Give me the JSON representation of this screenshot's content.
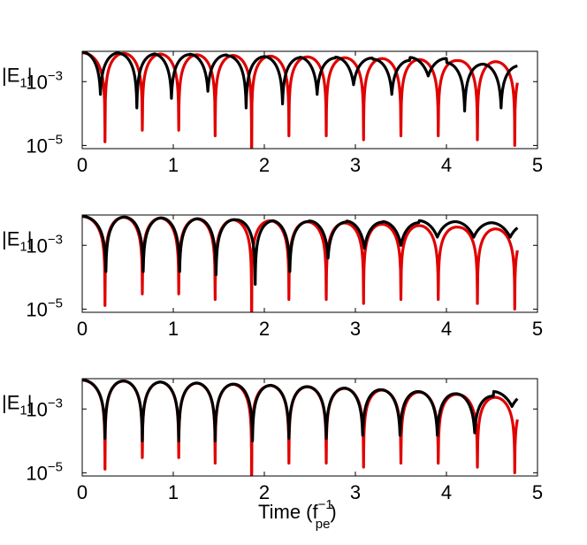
{
  "chart_data": [
    {
      "type": "line",
      "ylabel": "|E1|",
      "xlim": [
        0,
        5
      ],
      "x_ticks": [
        "0",
        "1",
        "2",
        "3",
        "4",
        "5"
      ],
      "y_scale": "log",
      "y_tick_labels": [
        {
          "base": "10",
          "exp": "−3"
        },
        {
          "base": "10",
          "exp": "−5"
        }
      ],
      "series": [
        {
          "color": "#e00000",
          "minima_x": [
            0.25,
            0.66,
            1.06,
            1.46,
            1.86,
            2.27,
            2.68,
            3.09,
            3.5,
            3.91,
            4.34,
            4.75
          ],
          "minima_depth": [
            1.3e-05,
            3e-05,
            3e-05,
            2e-05,
            1e-06,
            2e-05,
            2e-05,
            1.5e-05,
            2e-05,
            2e-05,
            1.5e-05,
            1e-05
          ],
          "peak_start": 0.008,
          "peak_end": 0.004,
          "end_x": 4.78
        },
        {
          "color": "#000000",
          "minima_x": [
            0.2,
            0.6,
            0.98,
            1.38,
            1.8,
            2.2,
            2.58,
            2.98,
            3.4,
            3.8,
            4.2,
            4.6
          ],
          "minima_depth": [
            0.0004,
            0.00015,
            0.0003,
            0.0005,
            0.00015,
            0.0002,
            0.0004,
            0.0008,
            0.0004,
            0.0015,
            0.00012,
            0.00015
          ],
          "peak_start": 0.008,
          "peak_end": 0.003,
          "end_x": 4.78
        }
      ]
    },
    {
      "type": "line",
      "ylabel": "|E1|",
      "xlim": [
        0,
        5
      ],
      "x_ticks": [
        "0",
        "1",
        "2",
        "3",
        "4",
        "5"
      ],
      "y_scale": "log",
      "y_tick_labels": [
        {
          "base": "10",
          "exp": "−3"
        },
        {
          "base": "10",
          "exp": "−5"
        }
      ],
      "series": [
        {
          "color": "#e00000",
          "minima_x": [
            0.25,
            0.66,
            1.06,
            1.46,
            1.86,
            2.27,
            2.68,
            3.09,
            3.5,
            3.91,
            4.34,
            4.75
          ],
          "minima_depth": [
            1.3e-05,
            3e-05,
            3e-05,
            2e-05,
            1e-06,
            2e-05,
            2e-05,
            1.5e-05,
            2e-05,
            2e-05,
            1.5e-05,
            1e-05
          ],
          "peak_start": 0.008,
          "peak_end": 0.003,
          "end_x": 4.78
        },
        {
          "color": "#000000",
          "minima_x": [
            0.26,
            0.67,
            1.07,
            1.47,
            1.9,
            2.28,
            2.7,
            3.1,
            3.5,
            3.9,
            4.3,
            4.7
          ],
          "minima_depth": [
            0.00015,
            0.00015,
            0.00015,
            0.00012,
            6e-05,
            0.00015,
            0.0004,
            0.0008,
            0.001,
            0.0018,
            0.0018,
            0.0018
          ],
          "peak_start": 0.008,
          "peak_end": 0.003,
          "end_x": 4.78
        }
      ]
    },
    {
      "type": "line",
      "ylabel": "|E1|",
      "xlabel": "Time (f",
      "xlabel_sup": "−1",
      "xlabel_sub": "pe",
      "xlabel_close": ")",
      "xlim": [
        0,
        5
      ],
      "x_ticks": [
        "0",
        "1",
        "2",
        "3",
        "4",
        "5"
      ],
      "y_scale": "log",
      "y_tick_labels": [
        {
          "base": "10",
          "exp": "−3"
        },
        {
          "base": "10",
          "exp": "−5"
        }
      ],
      "series": [
        {
          "color": "#e00000",
          "minima_x": [
            0.25,
            0.66,
            1.06,
            1.46,
            1.86,
            2.27,
            2.68,
            3.09,
            3.5,
            3.91,
            4.34,
            4.75
          ],
          "minima_depth": [
            1.3e-05,
            3e-05,
            3e-05,
            2e-05,
            1e-06,
            2e-05,
            2e-05,
            1.5e-05,
            2e-05,
            2e-05,
            1.5e-05,
            1e-05
          ],
          "peak_start": 0.008,
          "peak_end": 0.002,
          "end_x": 4.78
        },
        {
          "color": "#000000",
          "minima_x": [
            0.25,
            0.66,
            1.06,
            1.46,
            1.87,
            2.27,
            2.68,
            3.08,
            3.49,
            3.9,
            4.31,
            4.72
          ],
          "minima_depth": [
            0.00012,
            0.0001,
            0.0001,
            0.0001,
            0.0001,
            0.00012,
            0.00012,
            0.00015,
            0.00015,
            0.00015,
            0.00018,
            0.0012
          ],
          "peak_start": 0.008,
          "peak_end": 0.002,
          "end_x": 4.78
        }
      ]
    }
  ]
}
